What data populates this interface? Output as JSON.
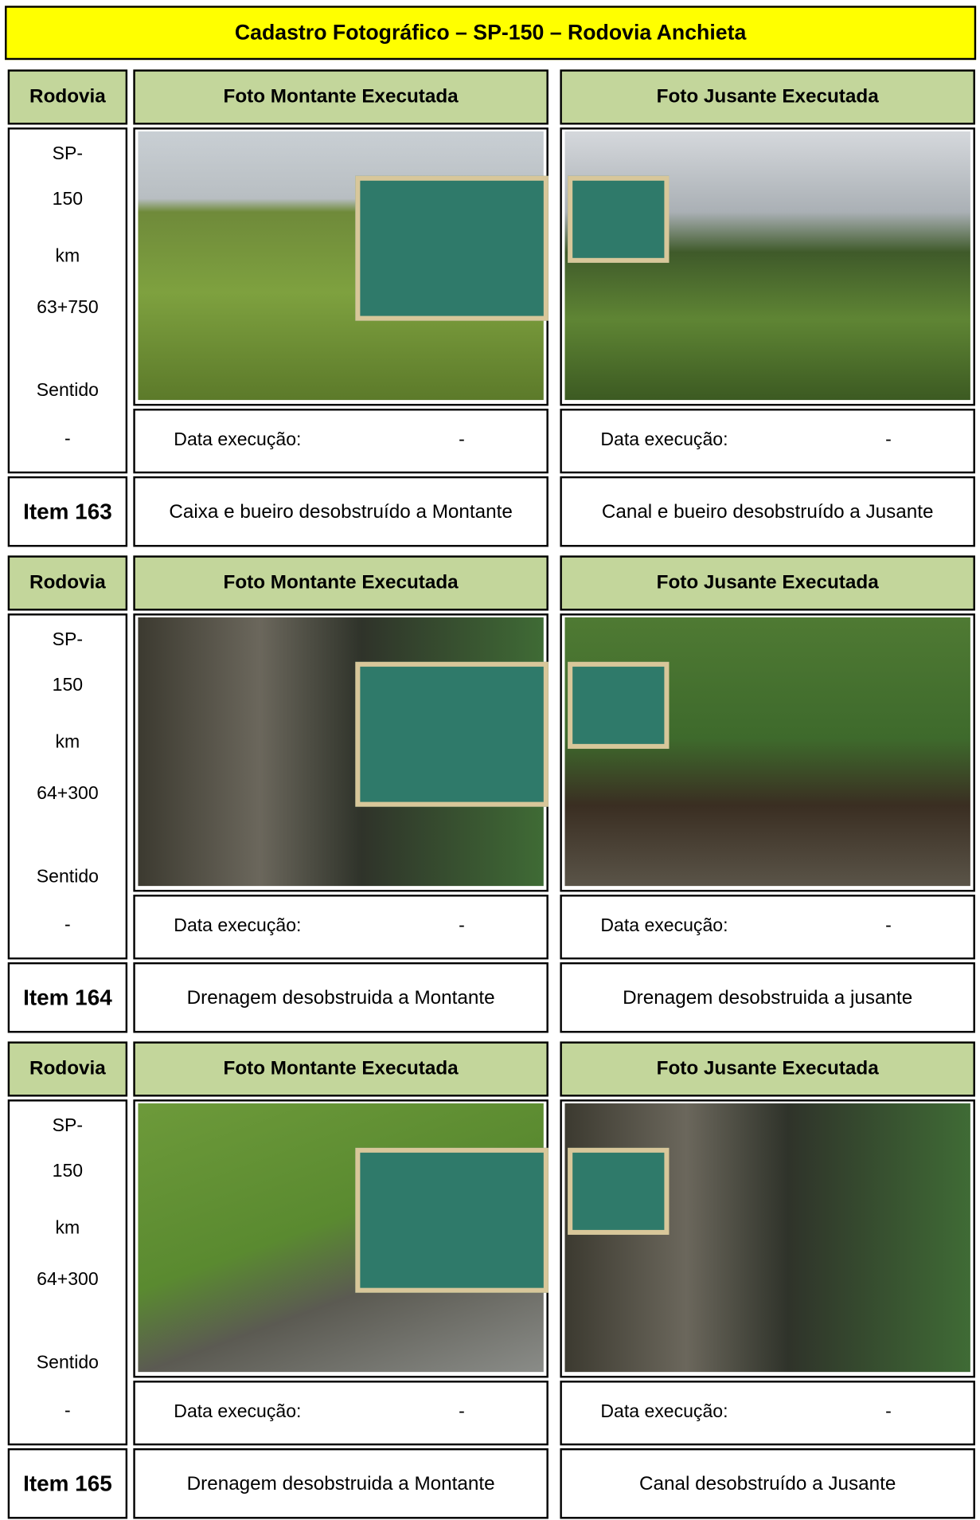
{
  "header": {
    "title": "Cadastro Fotográfico – SP-150 – Rodovia Anchieta"
  },
  "blocks": [
    {
      "headers": [
        "Rodovia",
        "Foto Montante Executada",
        "Foto Jusante Executada"
      ],
      "location": [
        "SP-",
        "150",
        "km",
        "63+750",
        "Sentido",
        "-"
      ],
      "montante": {
        "date_label": "Data execução:",
        "date": "-",
        "caption": "Caixa e bueiro desobstruído a Montante"
      },
      "jusante": {
        "date_label": "Data execução:",
        "date": "-",
        "caption": "Canal e bueiro desobstruído a Jusante"
      },
      "item": "Item 163"
    },
    {
      "headers": [
        "Rodovia",
        "Foto Montante Executada",
        "Foto Jusante Executada"
      ],
      "location": [
        "SP-",
        "150",
        "km",
        "64+300",
        "Sentido",
        "-"
      ],
      "montante": {
        "date_label": "Data execução:",
        "date": "-",
        "caption": "Drenagem desobstruida a Montante"
      },
      "jusante": {
        "date_label": "Data execução:",
        "date": "-",
        "caption": "Drenagem desobstruida a jusante"
      },
      "item": "Item 164"
    },
    {
      "headers": [
        "Rodovia",
        "Foto Montante Executada",
        "Foto Jusante Executada"
      ],
      "location": [
        "SP-",
        "150",
        "km",
        "64+300",
        "Sentido",
        "-"
      ],
      "montante": {
        "date_label": "Data execução:",
        "date": "-",
        "caption": "Drenagem desobstruida a Montante"
      },
      "jusante": {
        "date_label": "Data execução:",
        "date": "-",
        "caption": "Canal desobstruído a Jusante"
      },
      "item": "Item 165"
    }
  ]
}
